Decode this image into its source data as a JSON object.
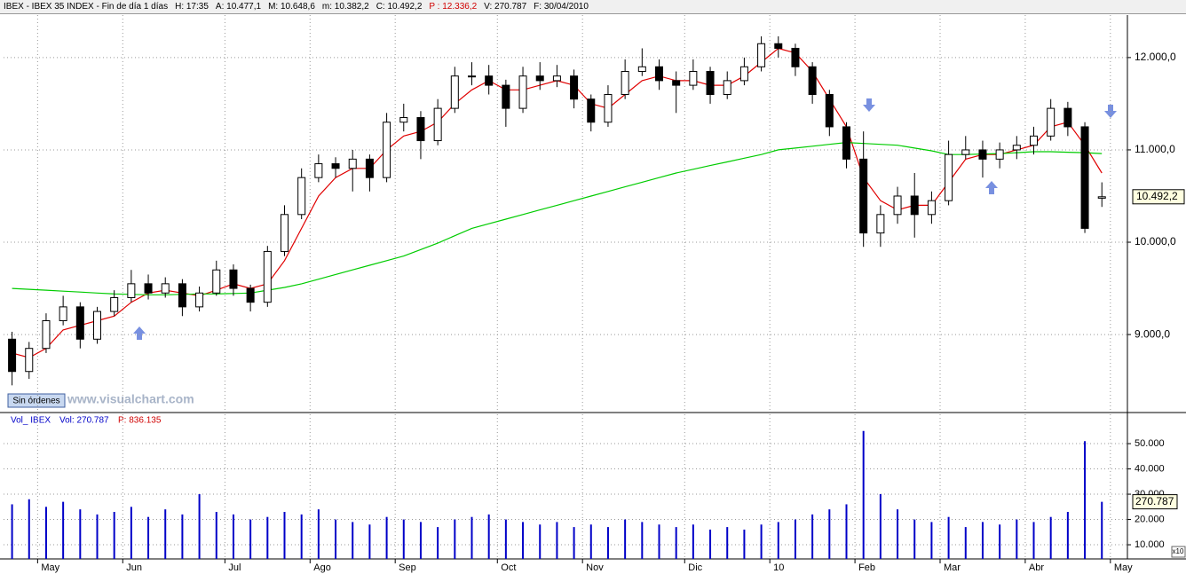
{
  "toolbar": {
    "items": [
      "IBEX - IBEX 35 INDEX - Fin de día 1 días",
      "H: 17:35",
      "A: 10.477,1",
      "M: 10.648,6",
      "m: 10.382,2",
      "C: 10.492,2",
      "P : 12.336,2",
      "V: 270.787",
      "F: 30/04/2010"
    ]
  },
  "chart_data": [
    {
      "type": "candlestick",
      "categories": [
        null,
        null,
        "May",
        null,
        null,
        null,
        null,
        "Jun",
        null,
        null,
        null,
        null,
        null,
        "Jul",
        null,
        null,
        null,
        null,
        "Ago",
        null,
        null,
        null,
        null,
        "Sep",
        null,
        null,
        null,
        null,
        null,
        "Oct",
        null,
        null,
        null,
        null,
        "Nov",
        null,
        null,
        null,
        null,
        null,
        "Dic",
        null,
        null,
        null,
        null,
        "10",
        null,
        null,
        null,
        null,
        "Feb",
        null,
        null,
        null,
        null,
        "Mar",
        null,
        null,
        null,
        null,
        "Abr",
        null,
        null,
        null,
        null,
        "May"
      ],
      "open": [
        8950,
        8600,
        8850,
        9150,
        9300,
        8950,
        9250,
        9400,
        9550,
        9450,
        9550,
        9300,
        9450,
        9700,
        9500,
        9350,
        9900,
        10300,
        10700,
        10850,
        10800,
        10900,
        10700,
        11300,
        11350,
        11100,
        11450,
        11800,
        11800,
        11700,
        11450,
        11800,
        11750,
        11800,
        11550,
        11300,
        11600,
        11850,
        11900,
        11750,
        11700,
        11850,
        11600,
        11750,
        11900,
        12150,
        12100,
        11900,
        11600,
        11250,
        10900,
        10100,
        10300,
        10500,
        10300,
        10450,
        10950,
        11000,
        10900,
        11000,
        11050,
        11150,
        11450,
        11250,
        10477.1,
        null
      ],
      "high": [
        9030,
        8920,
        9230,
        9420,
        9350,
        9300,
        9480,
        9700,
        9650,
        9620,
        9600,
        9520,
        9800,
        9760,
        9540,
        9960,
        10400,
        10800,
        10950,
        10920,
        11000,
        10950,
        11400,
        11500,
        11420,
        11550,
        11900,
        11950,
        11920,
        11760,
        11900,
        11950,
        11920,
        11870,
        11600,
        11700,
        11980,
        12100,
        11980,
        11850,
        11980,
        11900,
        11850,
        12000,
        12230,
        12230,
        12150,
        11950,
        11650,
        11300,
        11200,
        10400,
        10600,
        10750,
        10550,
        11100,
        11150,
        11100,
        11080,
        11150,
        11250,
        11550,
        11520,
        11300,
        10648.6,
        null
      ],
      "low": [
        8450,
        8520,
        8800,
        9100,
        8850,
        8900,
        9200,
        9350,
        9380,
        9400,
        9200,
        9250,
        9420,
        9420,
        9250,
        9300,
        9850,
        10250,
        10650,
        10700,
        10550,
        10550,
        10650,
        11200,
        10900,
        11050,
        11400,
        11700,
        11600,
        11250,
        11400,
        11650,
        11680,
        11450,
        11200,
        11250,
        11550,
        11800,
        11650,
        11400,
        11650,
        11500,
        11550,
        11700,
        11850,
        12000,
        11800,
        11500,
        11150,
        10800,
        9950,
        9950,
        10200,
        10050,
        10200,
        10400,
        10900,
        10700,
        10800,
        10900,
        10950,
        11100,
        11150,
        10100,
        10382.2,
        null
      ],
      "close": [
        8600,
        8850,
        9150,
        9300,
        8950,
        9250,
        9400,
        9550,
        9450,
        9550,
        9300,
        9450,
        9700,
        9500,
        9350,
        9900,
        10300,
        10700,
        10850,
        10800,
        10900,
        10700,
        11300,
        11350,
        11100,
        11450,
        11800,
        11800,
        11700,
        11450,
        11800,
        11750,
        11800,
        11550,
        11300,
        11600,
        11850,
        11900,
        11750,
        11700,
        11850,
        11600,
        11750,
        11900,
        12150,
        12100,
        11900,
        11600,
        11250,
        10900,
        10100,
        10300,
        10500,
        10300,
        10450,
        10950,
        11000,
        10900,
        11000,
        11050,
        11150,
        11450,
        11250,
        10150,
        10492.2,
        null
      ],
      "overlays": [
        {
          "color": "#e00000",
          "values": [
            8800,
            8750,
            8850,
            9050,
            9100,
            9150,
            9200,
            9350,
            9450,
            9480,
            9450,
            9420,
            9480,
            9550,
            9500,
            9550,
            9800,
            10150,
            10500,
            10700,
            10800,
            10800,
            11000,
            11150,
            11200,
            11300,
            11500,
            11650,
            11750,
            11650,
            11650,
            11700,
            11750,
            11700,
            11500,
            11450,
            11600,
            11750,
            11800,
            11750,
            11750,
            11700,
            11700,
            11800,
            11950,
            12100,
            12050,
            11850,
            11550,
            11250,
            10700,
            10450,
            10350,
            10400,
            10400,
            10650,
            10900,
            10950,
            10950,
            11000,
            11050,
            11250,
            11300,
            11050,
            10750,
            null
          ]
        },
        {
          "color": "#00cc00",
          "values": [
            9500,
            9490,
            9480,
            9470,
            9460,
            9450,
            9440,
            9435,
            9430,
            9430,
            9435,
            9440,
            9440,
            9445,
            9450,
            9480,
            9510,
            9550,
            9600,
            9650,
            9700,
            9750,
            9800,
            9850,
            9920,
            9990,
            10070,
            10150,
            10200,
            10250,
            10300,
            10350,
            10400,
            10450,
            10500,
            10550,
            10600,
            10650,
            10700,
            10750,
            10790,
            10830,
            10870,
            10910,
            10950,
            11000,
            11020,
            11040,
            11060,
            11080,
            11070,
            11060,
            11050,
            11020,
            10990,
            10950,
            10950,
            10955,
            10960,
            10970,
            10980,
            10980,
            10975,
            10970,
            10960,
            null
          ]
        }
      ],
      "ylim": [
        8165,
        12460
      ],
      "yticks": [
        {
          "value": 9000,
          "label": "9.000,0"
        },
        {
          "value": 10000,
          "label": "10.000,0"
        },
        {
          "value": 11000,
          "label": "11.000,0"
        },
        {
          "value": 12000,
          "label": "12.000,0"
        }
      ],
      "grid": true,
      "last_label": "10.492,2",
      "watermark": "www.visualchart.com",
      "orders_button": "Sin órdenes"
    },
    {
      "type": "bar",
      "header": [
        "Vol_ IBEX",
        "Vol: 270.787",
        "P: 836.135"
      ],
      "color": "#0000c8",
      "values": [
        26000,
        28000,
        25000,
        27000,
        24000,
        22000,
        23000,
        25000,
        21000,
        24000,
        22000,
        30000,
        23000,
        22000,
        20000,
        21000,
        23000,
        22000,
        24000,
        20000,
        19000,
        18000,
        21000,
        20000,
        19000,
        17000,
        20000,
        21000,
        22000,
        20000,
        19000,
        18000,
        19000,
        17000,
        18000,
        17000,
        20000,
        19000,
        18000,
        17000,
        18000,
        16000,
        17000,
        16000,
        18000,
        19000,
        20000,
        22000,
        24000,
        26000,
        55000,
        30000,
        24000,
        20000,
        19000,
        21000,
        17000,
        19000,
        18000,
        20000,
        19000,
        21000,
        23000,
        51000,
        27000,
        null
      ],
      "ylim": [
        4400,
        61600
      ],
      "yticks": [
        {
          "value": 10000,
          "label": "10.000"
        },
        {
          "value": 20000,
          "label": "20.000"
        },
        {
          "value": 30000,
          "label": "30.000"
        },
        {
          "value": 40000,
          "label": "40.000"
        },
        {
          "value": 50000,
          "label": "50.000"
        }
      ],
      "grid": true,
      "last_label": "270.787",
      "multiplier": "x10"
    }
  ]
}
